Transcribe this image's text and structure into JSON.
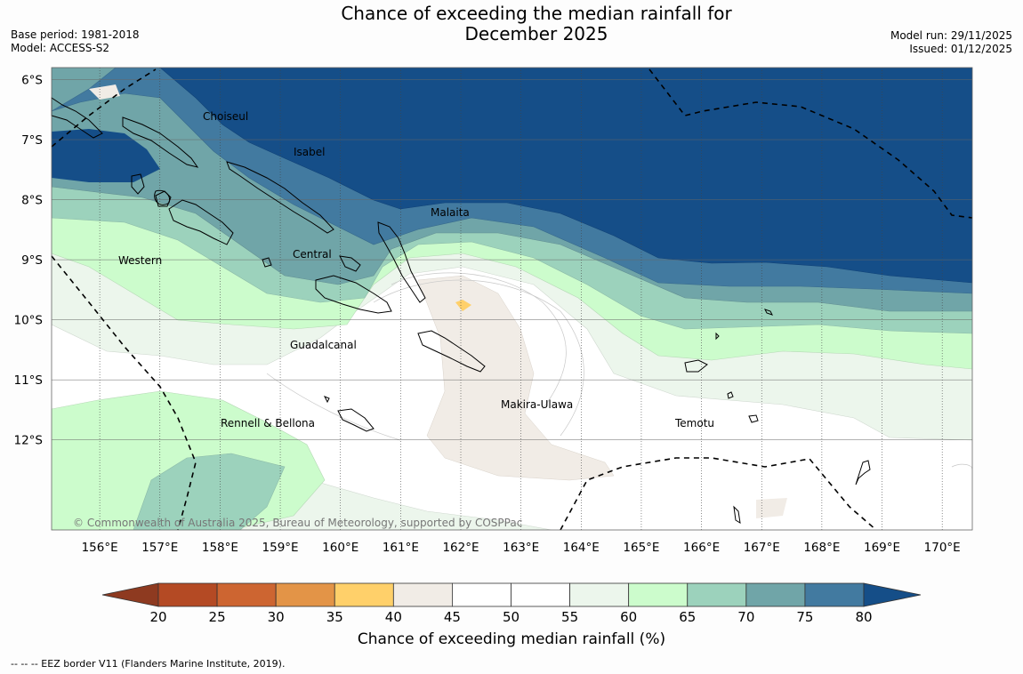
{
  "title_line1": "Chance of exceeding the median rainfall for",
  "title_line2": "December 2025",
  "base_period": "Base period: 1981-2018",
  "model": "Model: ACCESS-S2",
  "model_run": "Model run: 29/11/2025",
  "issued": "Issued: 01/12/2025",
  "copyright": "© Commonwealth of Australia 2025, Bureau of Meteorology, supported by COSPPac",
  "footer_note": "--  --  -- EEZ border V11 (Flanders Marine Institute, 2019).",
  "colorbar": {
    "label": "Chance of exceeding median rainfall (%)",
    "ticks": [
      "20",
      "25",
      "30",
      "35",
      "40",
      "45",
      "50",
      "55",
      "60",
      "65",
      "70",
      "75",
      "80"
    ],
    "colors": [
      "#8e3a20",
      "#b44a24",
      "#cd6531",
      "#e39447",
      "#ffd06a",
      "#f1ece6",
      "#ffffff",
      "#ffffff",
      "#ecf6ec",
      "#ccfccc",
      "#9cd2bc",
      "#70a5a8",
      "#427aa0",
      "#154e88"
    ]
  },
  "regions": [
    "Choiseul",
    "Isabel",
    "Malaita",
    "Central",
    "Western",
    "Guadalcanal",
    "Makira-Ulawa",
    "Rennell & Bellona",
    "Temotu"
  ],
  "chart_data": {
    "type": "heatmap",
    "title": "Chance of exceeding the median rainfall for December 2025",
    "x_ticks": [
      "156°E",
      "157°E",
      "158°E",
      "159°E",
      "160°E",
      "161°E",
      "162°E",
      "163°E",
      "164°E",
      "165°E",
      "166°E",
      "167°E",
      "168°E",
      "169°E",
      "170°E"
    ],
    "y_ticks": [
      "6°S",
      "7°S",
      "8°S",
      "9°S",
      "10°S",
      "11°S",
      "12°S"
    ],
    "lon_range": [
      155.2,
      170.5
    ],
    "lat_range": [
      -13.5,
      -5.8
    ],
    "value_bins": [
      20,
      25,
      30,
      35,
      40,
      45,
      50,
      55,
      60,
      65,
      70,
      75,
      80
    ],
    "units": "%"
  }
}
